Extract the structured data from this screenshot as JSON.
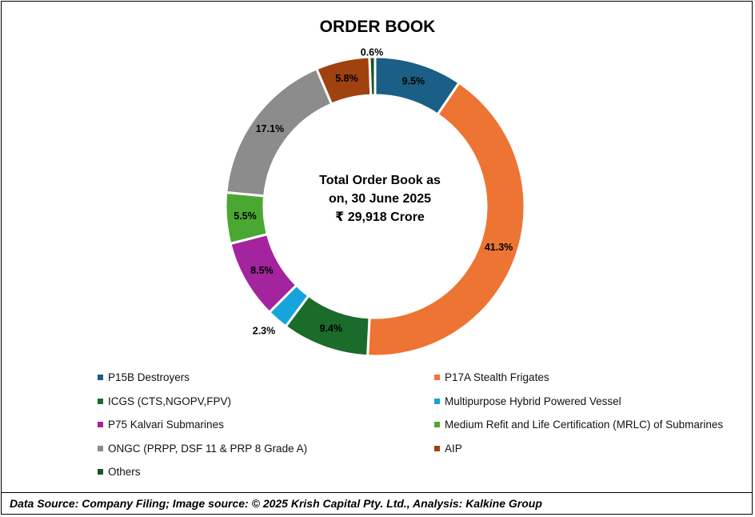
{
  "chart_data": {
    "type": "pie",
    "title": "ORDER BOOK",
    "center_text": [
      "Total Order Book as",
      "on, 30 June 2025",
      "₹ 29,918 Crore"
    ],
    "series": [
      {
        "name": "P15B Destroyers",
        "value": 9.5,
        "label": "9.5%",
        "color": "#1b5f86"
      },
      {
        "name": "P17A Stealth Frigates",
        "value": 41.3,
        "label": "41.3%",
        "color": "#ed7433"
      },
      {
        "name": "ICGS (CTS,NGOPV,FPV)",
        "value": 9.4,
        "label": "9.4%",
        "color": "#1b6b2a"
      },
      {
        "name": "Multipurpose Hybrid Powered Vessel",
        "value": 2.3,
        "label": "2.3%",
        "color": "#17a3dc"
      },
      {
        "name": "P75 Kalvari Submarines",
        "value": 8.5,
        "label": "8.5%",
        "color": "#a3249e"
      },
      {
        "name": "Medium Refit and Life Certification (MRLC) of Submarines",
        "value": 5.5,
        "label": "5.5%",
        "color": "#4aa832"
      },
      {
        "name": "ONGC (PRPP, DSF 11 & PRP 8 Grade A)",
        "value": 17.1,
        "label": "17.1%",
        "color": "#8c8c8c"
      },
      {
        "name": "AIP",
        "value": 5.8,
        "label": "5.8%",
        "color": "#a0420f"
      },
      {
        "name": "Others",
        "value": 0.6,
        "label": "0.6%",
        "color": "#17532a"
      }
    ],
    "legend_position": "bottom"
  },
  "footer": {
    "source": "Data Source: Company Filing; Image source: © 2025 Krish Capital Pty. Ltd., Analysis: Kalkine Group"
  }
}
